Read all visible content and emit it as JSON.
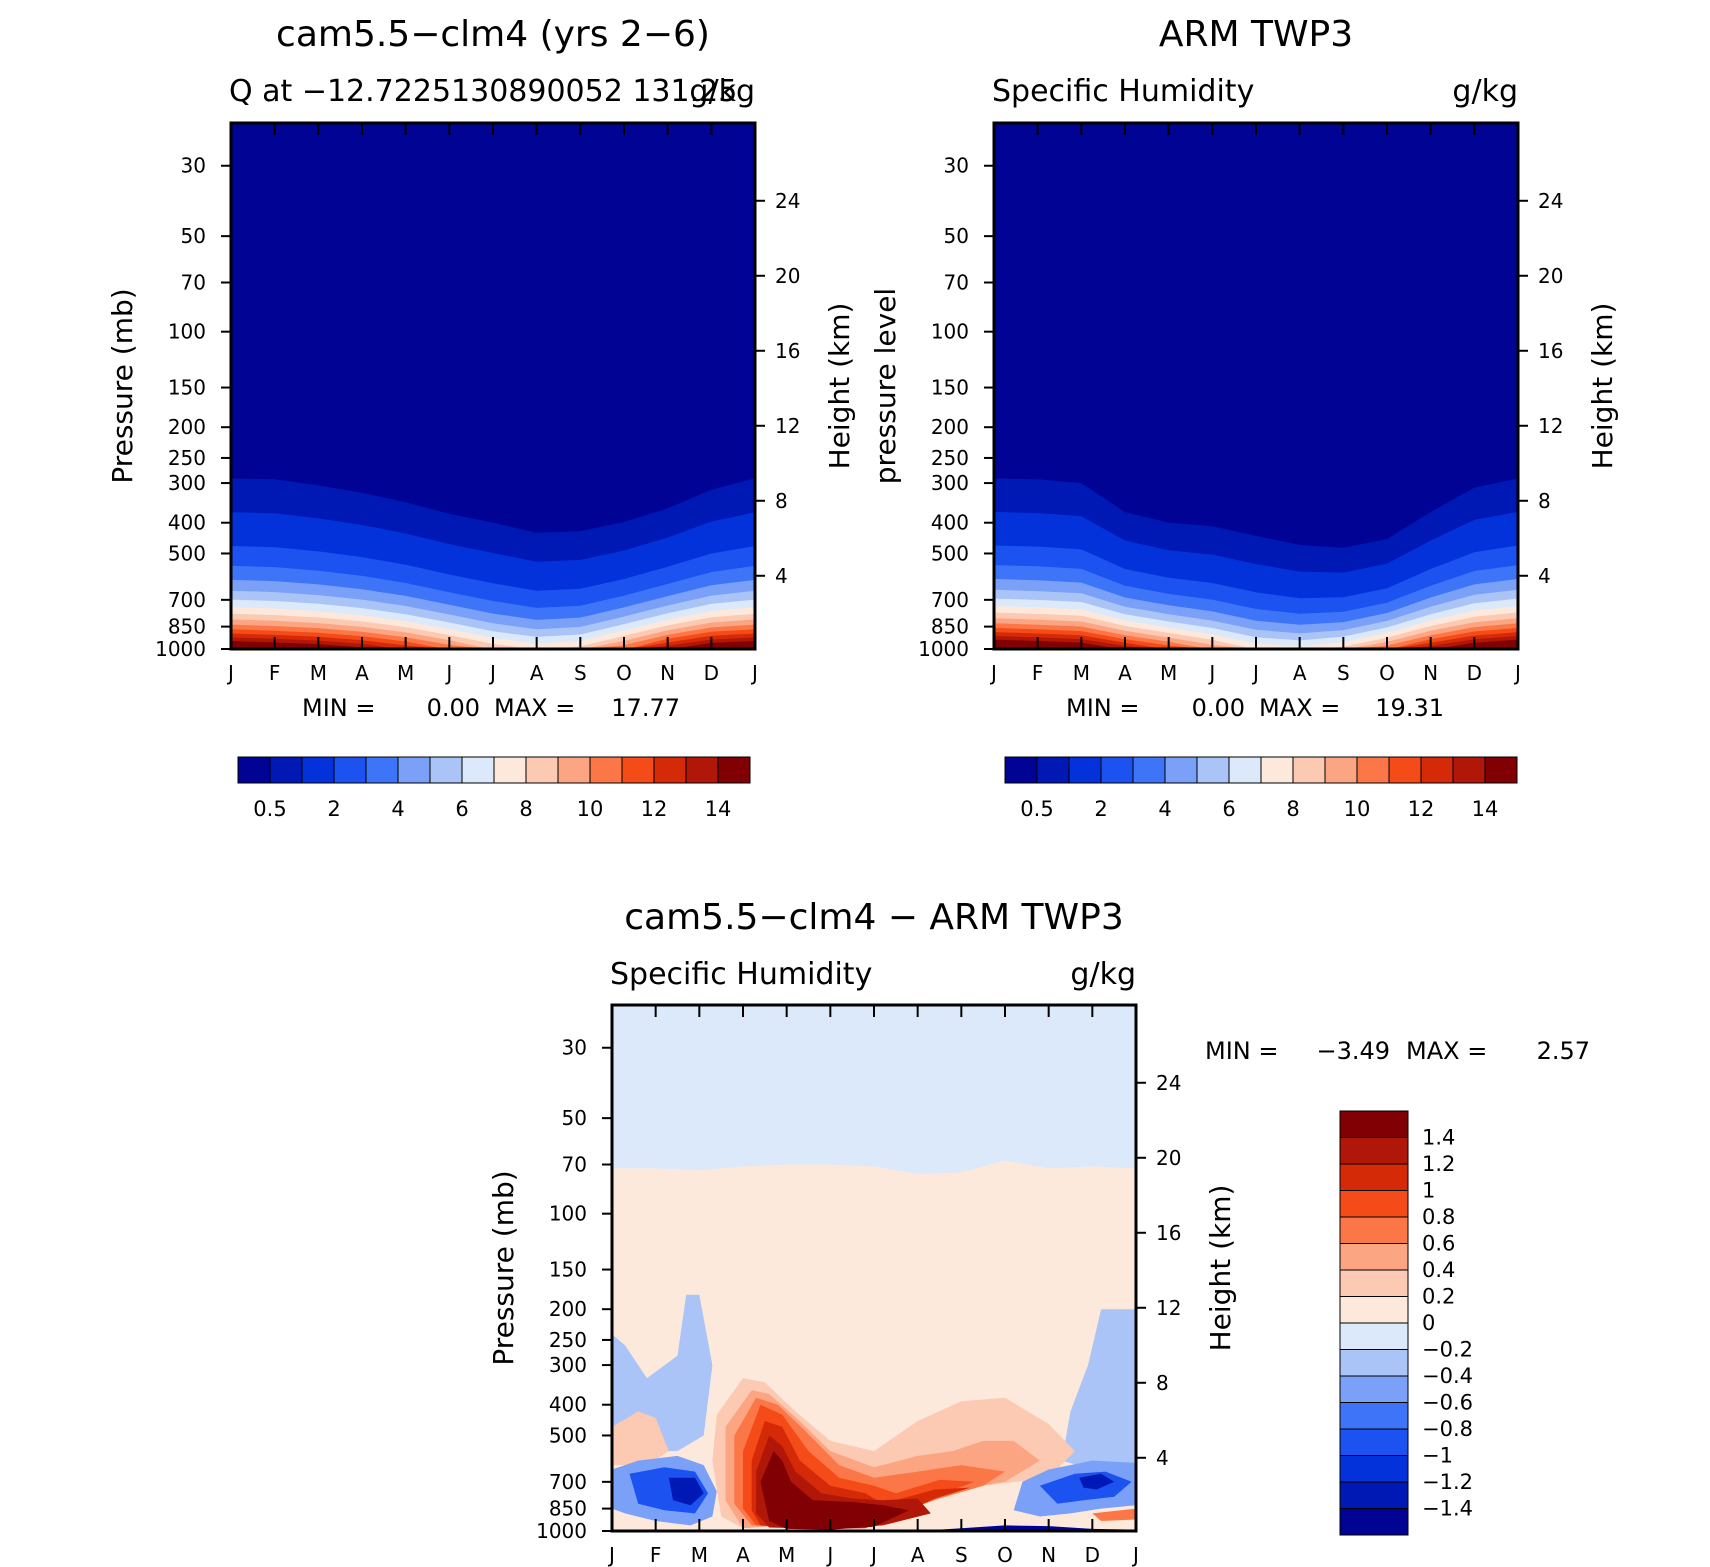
{
  "chart_data": [
    {
      "type": "heatmap",
      "title": "cam5.5−clm4 (yrs 2−6)",
      "subtitle_left": "Q at −12.7225130890052 131.25",
      "subtitle_right": "g/kg",
      "ylabel": "Pressure (mb)",
      "ylabel_right": "Height (km)",
      "x_tick_labels": [
        "J",
        "F",
        "M",
        "A",
        "M",
        "J",
        "J",
        "A",
        "S",
        "O",
        "N",
        "D",
        "J"
      ],
      "y_ticks": [
        30,
        50,
        70,
        100,
        150,
        200,
        250,
        300,
        400,
        500,
        700,
        850,
        1000
      ],
      "y_ticks_right": [
        24,
        20,
        16,
        12,
        8,
        4
      ],
      "y_scale": "log-pressure",
      "ylim": [
        1000,
        22
      ],
      "min_text": "MIN =",
      "min_value": "0.00",
      "max_text": "MAX =",
      "max_value": "17.77",
      "colorbar": {
        "orientation": "horizontal",
        "levels": [
          0.5,
          1,
          2,
          3,
          4,
          5,
          6,
          7,
          8,
          9,
          10,
          11,
          12,
          13,
          14
        ],
        "labels": [
          "0.5",
          "2",
          "4",
          "6",
          "8",
          "10",
          "12",
          "14"
        ],
        "colors": [
          "#000394",
          "#0018b4",
          "#0432da",
          "#1b52f0",
          "#3e74f8",
          "#7aa0f8",
          "#aac4f8",
          "#dbe9fb",
          "#fde9dc",
          "#fcc9b2",
          "#fca582",
          "#fc7747",
          "#f44b19",
          "#d42a08",
          "#b01708",
          "#800004"
        ]
      },
      "profile_top_hpa": [
        290,
        292,
        305,
        322,
        345,
        375,
        400,
        430,
        425,
        398,
        360,
        315,
        290
      ],
      "profile_surface_g_kg": [
        16.5,
        16,
        15.5,
        14.5,
        13,
        11,
        9,
        8,
        8.5,
        11,
        14,
        16,
        16.5
      ]
    },
    {
      "type": "heatmap",
      "title": "ARM TWP3",
      "subtitle_left": "Specific Humidity",
      "subtitle_right": "g/kg",
      "ylabel": "pressure level",
      "ylabel_right": "Height (km)",
      "x_tick_labels": [
        "J",
        "F",
        "M",
        "A",
        "M",
        "J",
        "J",
        "A",
        "S",
        "O",
        "N",
        "D",
        "J"
      ],
      "y_ticks": [
        30,
        50,
        70,
        100,
        150,
        200,
        250,
        300,
        400,
        500,
        700,
        850,
        1000
      ],
      "y_ticks_right": [
        24,
        20,
        16,
        12,
        8,
        4
      ],
      "y_scale": "log-pressure",
      "ylim": [
        1000,
        22
      ],
      "min_text": "MIN =",
      "min_value": "0.00",
      "max_text": "MAX =",
      "max_value": "19.31",
      "colorbar": {
        "orientation": "horizontal",
        "levels": [
          0.5,
          1,
          2,
          3,
          4,
          5,
          6,
          7,
          8,
          9,
          10,
          11,
          12,
          13,
          14
        ],
        "labels": [
          "0.5",
          "2",
          "4",
          "6",
          "8",
          "10",
          "12",
          "14"
        ],
        "colors": [
          "#000394",
          "#0018b4",
          "#0432da",
          "#1b52f0",
          "#3e74f8",
          "#7aa0f8",
          "#aac4f8",
          "#dbe9fb",
          "#fde9dc",
          "#fcc9b2",
          "#fca582",
          "#fc7747",
          "#f44b19",
          "#d42a08",
          "#b01708",
          "#800004"
        ]
      },
      "profile_top_hpa": [
        290,
        292,
        300,
        370,
        400,
        410,
        440,
        470,
        480,
        450,
        370,
        310,
        290
      ],
      "profile_surface_g_kg": [
        17,
        16.5,
        16,
        14,
        12,
        10,
        8,
        7.5,
        8.5,
        11,
        14,
        16,
        17
      ]
    },
    {
      "type": "heatmap",
      "title": "cam5.5−clm4 − ARM TWP3",
      "subtitle_left": "Specific Humidity",
      "subtitle_right": "g/kg",
      "ylabel": "Pressure (mb)",
      "ylabel_right": "Height (km)",
      "x_tick_labels": [
        "J",
        "F",
        "M",
        "A",
        "M",
        "J",
        "J",
        "A",
        "S",
        "O",
        "N",
        "D",
        "J"
      ],
      "y_ticks": [
        30,
        50,
        70,
        100,
        150,
        200,
        250,
        300,
        400,
        500,
        700,
        850,
        1000
      ],
      "y_ticks_right": [
        24,
        20,
        16,
        12,
        8,
        4
      ],
      "y_scale": "log-pressure",
      "ylim": [
        1000,
        22
      ],
      "min_text": "MIN =",
      "min_value": "−3.49",
      "max_text": "MAX =",
      "max_value": "2.57",
      "colorbar": {
        "orientation": "vertical",
        "levels": [
          -1.4,
          -1.2,
          -1,
          -0.8,
          -0.6,
          -0.4,
          -0.2,
          0,
          0.2,
          0.4,
          0.6,
          0.8,
          1,
          1.2,
          1.4
        ],
        "labels": [
          "1.4",
          "1.2",
          "1",
          "0.8",
          "0.6",
          "0.4",
          "0.2",
          "0",
          "−0.2",
          "−0.4",
          "−0.6",
          "−0.8",
          "−1",
          "−1.2",
          "−1.4"
        ],
        "colors": [
          "#800004",
          "#b01708",
          "#d42a08",
          "#f44b19",
          "#fc7747",
          "#fca582",
          "#fcc9b2",
          "#fde9dc",
          "#dbe9fb",
          "#aac4f8",
          "#7aa0f8",
          "#3e74f8",
          "#1b52f0",
          "#0432da",
          "#0018b4",
          "#000394"
        ]
      },
      "regions": [
        {
          "name": "upper",
          "p_range": [
            22,
            72
          ],
          "value": -0.1
        },
        {
          "name": "middle",
          "p_range": [
            72,
            1000
          ],
          "value": 0.1
        },
        {
          "name": "jan-mar-mid",
          "value": -0.3
        },
        {
          "name": "apr-aug-low",
          "value": 1.5
        },
        {
          "name": "feb-mar-low",
          "value": -1.0
        },
        {
          "name": "oct-dec-low",
          "value": -0.8
        }
      ]
    }
  ]
}
